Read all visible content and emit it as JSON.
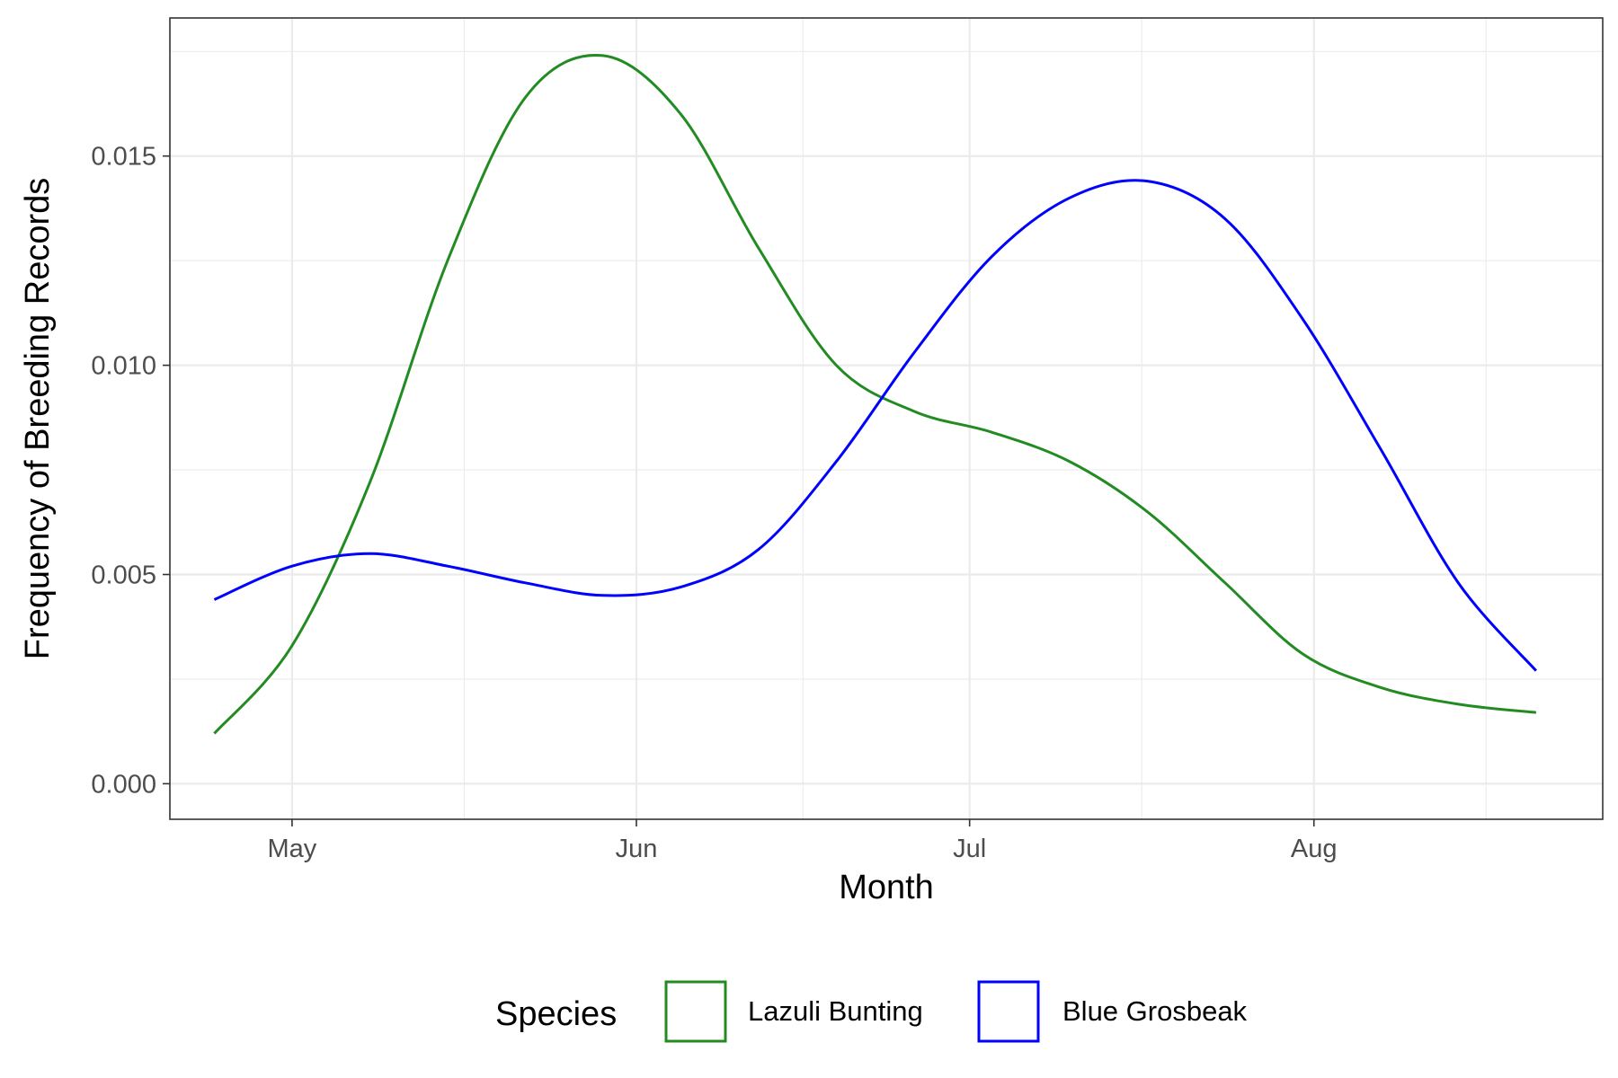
{
  "chart_data": {
    "type": "line",
    "title": "",
    "xlabel": "Month",
    "ylabel": "Frequency of Breeding Records",
    "x_ticks": [
      "May",
      "Jun",
      "Jul",
      "Aug"
    ],
    "y_ticks": [
      "0.000",
      "0.005",
      "0.010",
      "0.015"
    ],
    "xlim": [
      "2000-04-20",
      "2000-08-27"
    ],
    "ylim": [
      -0.00085,
      0.0183
    ],
    "grid": true,
    "legend": {
      "title": "Species",
      "position": "bottom"
    },
    "x": [
      "2000-04-24",
      "2000-05-01",
      "2000-05-08",
      "2000-05-15",
      "2000-05-22",
      "2000-05-29",
      "2000-06-05",
      "2000-06-12",
      "2000-06-19",
      "2000-06-26",
      "2000-07-03",
      "2000-07-10",
      "2000-07-17",
      "2000-07-24",
      "2000-07-31",
      "2000-08-07",
      "2000-08-14",
      "2000-08-21"
    ],
    "series": [
      {
        "name": "Lazuli Bunting",
        "color": "#228B22",
        "values": [
          0.0012,
          0.0033,
          0.0072,
          0.0125,
          0.0164,
          0.0174,
          0.016,
          0.0128,
          0.01,
          0.0089,
          0.0084,
          0.0077,
          0.0065,
          0.0048,
          0.0031,
          0.0023,
          0.0019,
          0.0017
        ]
      },
      {
        "name": "Blue Grosbeak",
        "color": "#0000FF",
        "values": [
          0.0044,
          0.0052,
          0.0055,
          0.0052,
          0.0048,
          0.0045,
          0.0047,
          0.0056,
          0.0077,
          0.0103,
          0.0126,
          0.014,
          0.0144,
          0.0135,
          0.0111,
          0.008,
          0.0048,
          0.0027
        ]
      }
    ]
  }
}
